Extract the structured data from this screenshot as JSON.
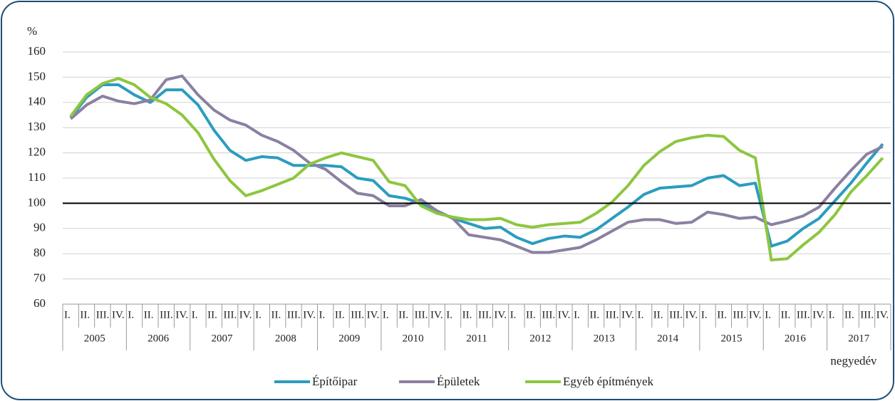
{
  "chart_data": {
    "type": "line",
    "y_label": "%",
    "x_label": "negyedév",
    "categories": [
      "I.",
      "II.",
      "III.",
      "IV.",
      "I.",
      "II.",
      "III.",
      "IV.",
      "I.",
      "II.",
      "III.",
      "IV.",
      "I.",
      "II.",
      "III.",
      "IV.",
      "I.",
      "II.",
      "III.",
      "IV.",
      "I.",
      "II.",
      "III.",
      "IV.",
      "I.",
      "II.",
      "III.",
      "IV.",
      "I.",
      "II.",
      "III.",
      "IV.",
      "I.",
      "II.",
      "III.",
      "IV.",
      "I.",
      "II.",
      "III.",
      "IV.",
      "I.",
      "II.",
      "III.",
      "IV.",
      "I.",
      "II.",
      "III.",
      "IV.",
      "I.",
      "II.",
      "III.",
      "IV."
    ],
    "years": [
      "2005",
      "2006",
      "2007",
      "2008",
      "2009",
      "2010",
      "2011",
      "2012",
      "2013",
      "2014",
      "2015",
      "2016",
      "2017"
    ],
    "ylim": [
      60,
      160
    ],
    "yticks": [
      60,
      70,
      80,
      90,
      100,
      110,
      120,
      130,
      140,
      150,
      160
    ],
    "grid": true,
    "reference_line": 100,
    "legend": "bottom",
    "series": [
      {
        "name": "Építőipar",
        "color": "#2b9cc0",
        "values": [
          134,
          142,
          147,
          147,
          143,
          140,
          145,
          145,
          139,
          129,
          121,
          117,
          118.5,
          118,
          115,
          115,
          115,
          114.5,
          110,
          109,
          103,
          102,
          100,
          97,
          94,
          92,
          90,
          90.5,
          86.5,
          84,
          86,
          87,
          86.5,
          89.5,
          94,
          98.5,
          103.5,
          106,
          106.5,
          107,
          110,
          111,
          107,
          108,
          83,
          85,
          90,
          94,
          101,
          108,
          116,
          123.5
        ]
      },
      {
        "name": "Épületek",
        "color": "#8b80a1",
        "values": [
          133.5,
          139,
          142.5,
          140.5,
          139.5,
          141,
          149,
          150.5,
          143,
          137,
          133,
          131,
          127,
          124.5,
          121,
          116,
          113.5,
          108.5,
          104,
          103,
          99,
          99,
          101.5,
          97,
          94,
          87.5,
          86.5,
          85.5,
          83,
          80.5,
          80.5,
          81.5,
          82.5,
          85.5,
          89,
          92.5,
          93.5,
          93.5,
          92,
          92.5,
          96.5,
          95.5,
          94,
          94.5,
          91.5,
          93,
          95,
          98.5,
          106,
          113,
          119.5,
          122.5
        ]
      },
      {
        "name": "Egyéb építmények",
        "color": "#8dc63f",
        "values": [
          134.5,
          143,
          147.5,
          149.5,
          147,
          142,
          139.5,
          135,
          128,
          117.5,
          109,
          103,
          105,
          107.5,
          110,
          115.5,
          118,
          120,
          118.5,
          117,
          108.5,
          107,
          99,
          96,
          94.5,
          93.5,
          93.5,
          94,
          91.5,
          90.5,
          91.5,
          92,
          92.5,
          96,
          100.5,
          107,
          115,
          120.5,
          124.5,
          126,
          127,
          126.5,
          121,
          118,
          77.5,
          78,
          83.5,
          88.5,
          95.5,
          104.5,
          111,
          118
        ]
      }
    ]
  }
}
